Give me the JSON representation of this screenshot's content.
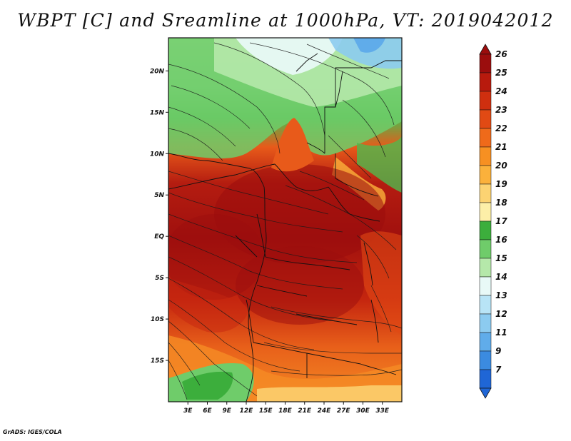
{
  "title": "WBPT [C] and Sreamline at 1000hPa, VT: 2019042012",
  "footer": "GrADS: IGES/COLA",
  "map": {
    "lon_range": [
      0,
      36
    ],
    "lat_range": [
      -20,
      24
    ],
    "lat_ticks": [
      {
        "label": "20N",
        "value": 20
      },
      {
        "label": "15N",
        "value": 15
      },
      {
        "label": "10N",
        "value": 10
      },
      {
        "label": "5N",
        "value": 5
      },
      {
        "label": "EQ",
        "value": 0
      },
      {
        "label": "5S",
        "value": -5
      },
      {
        "label": "10S",
        "value": -10
      },
      {
        "label": "15S",
        "value": -15
      }
    ],
    "lon_ticks": [
      {
        "label": "3E",
        "value": 3
      },
      {
        "label": "6E",
        "value": 6
      },
      {
        "label": "9E",
        "value": 9
      },
      {
        "label": "12E",
        "value": 12
      },
      {
        "label": "15E",
        "value": 15
      },
      {
        "label": "18E",
        "value": 18
      },
      {
        "label": "21E",
        "value": 21
      },
      {
        "label": "24E",
        "value": 24
      },
      {
        "label": "27E",
        "value": 27
      },
      {
        "label": "30E",
        "value": 30
      },
      {
        "label": "33E",
        "value": 33
      }
    ]
  },
  "colorbar": {
    "labels": [
      "26",
      "25",
      "24",
      "23",
      "22",
      "21",
      "20",
      "19",
      "18",
      "17",
      "16",
      "15",
      "14",
      "13",
      "12",
      "11",
      "9",
      "7"
    ],
    "colors": [
      "#9b0d0d",
      "#b81a0d",
      "#cf2f0f",
      "#e14a14",
      "#ef6a1a",
      "#f79022",
      "#fbb13b",
      "#fcd372",
      "#fdefa8",
      "#3cae3c",
      "#6fcc6a",
      "#b5e8aa",
      "#e8f9f7",
      "#b8e4f6",
      "#8ccbf0",
      "#60acea",
      "#3b8be0",
      "#1f66d6"
    ]
  }
}
